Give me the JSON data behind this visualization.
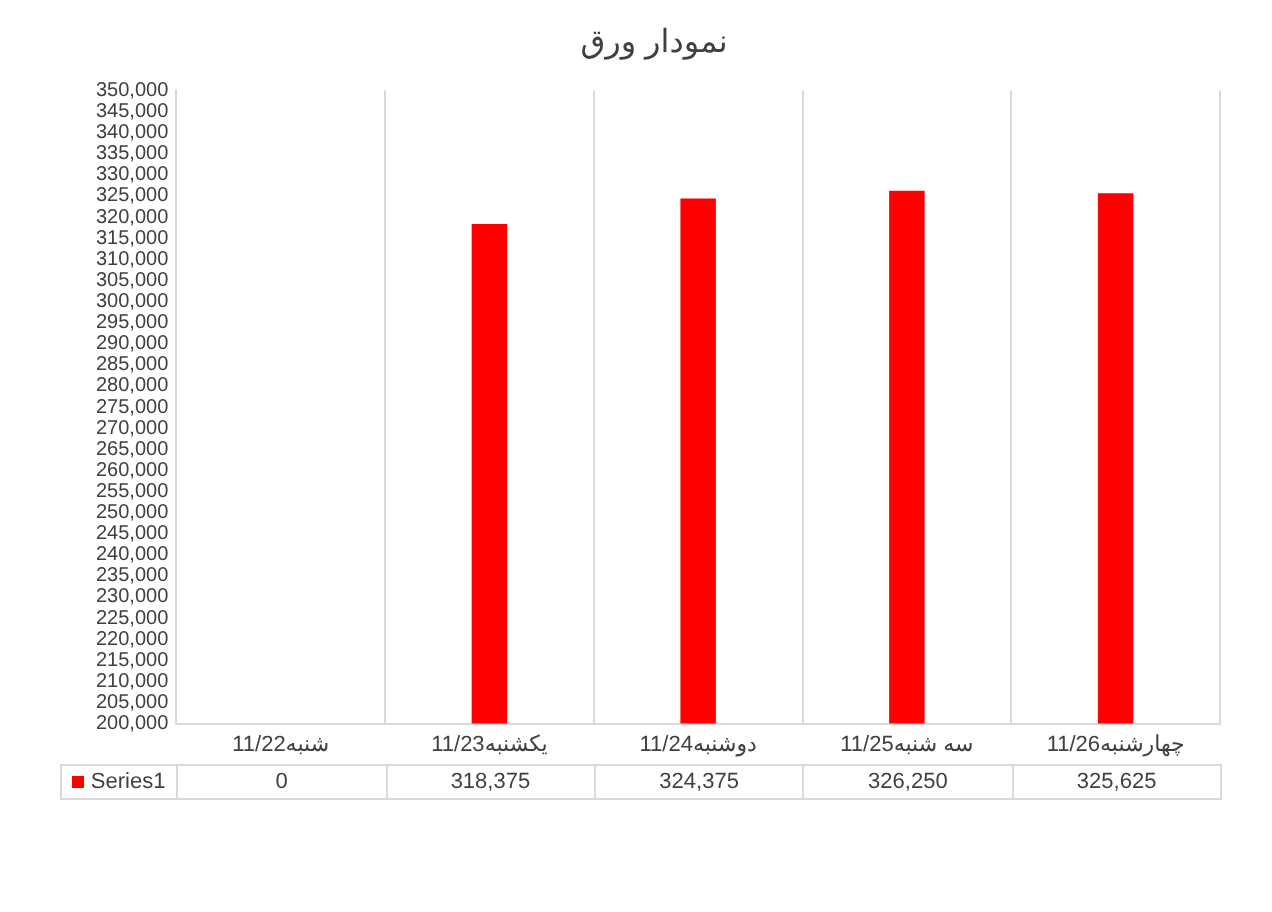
{
  "chart_data": {
    "type": "bar",
    "title": "نمودار ورق",
    "categories": [
      "شنبه11/22",
      "یکشنبه11/23",
      "دوشنبه11/24",
      "سه شنبه11/25",
      "چهارشنبه11/26"
    ],
    "series": [
      {
        "name": "Series1",
        "color": "#ff0000",
        "values": [
          null,
          318375,
          324375,
          326250,
          325625
        ],
        "value_labels": [
          "0",
          "318,375",
          "324,375",
          "326,250",
          "325,625"
        ]
      }
    ],
    "ylim": [
      200000,
      350000
    ],
    "yticks": [
      {
        "value": 200000,
        "label": "200,000"
      },
      {
        "value": 205000,
        "label": "205,000"
      },
      {
        "value": 210000,
        "label": "210,000"
      },
      {
        "value": 215000,
        "label": "215,000"
      },
      {
        "value": 220000,
        "label": "220,000"
      },
      {
        "value": 225000,
        "label": "225,000"
      },
      {
        "value": 230000,
        "label": "230,000"
      },
      {
        "value": 235000,
        "label": "235,000"
      },
      {
        "value": 240000,
        "label": "240,000"
      },
      {
        "value": 245000,
        "label": "245,000"
      },
      {
        "value": 250000,
        "label": "250,000"
      },
      {
        "value": 255000,
        "label": "255,000"
      },
      {
        "value": 260000,
        "label": "260,000"
      },
      {
        "value": 265000,
        "label": "265,000"
      },
      {
        "value": 270000,
        "label": "270,000"
      },
      {
        "value": 275000,
        "label": "275,000"
      },
      {
        "value": 280000,
        "label": "280,000"
      },
      {
        "value": 285000,
        "label": "285,000"
      },
      {
        "value": 290000,
        "label": "290,000"
      },
      {
        "value": 295000,
        "label": "295,000"
      },
      {
        "value": 300000,
        "label": "300,000"
      },
      {
        "value": 305000,
        "label": "305,000"
      },
      {
        "value": 310000,
        "label": "310,000"
      },
      {
        "value": 315000,
        "label": "315,000"
      },
      {
        "value": 320000,
        "label": "320,000"
      },
      {
        "value": 325000,
        "label": "325,000"
      },
      {
        "value": 330000,
        "label": "330,000"
      },
      {
        "value": 335000,
        "label": "335,000"
      },
      {
        "value": 340000,
        "label": "340,000"
      },
      {
        "value": 345000,
        "label": "345,000"
      },
      {
        "value": 350000,
        "label": "350,000"
      }
    ],
    "grid": "x",
    "legend": "bottom"
  }
}
